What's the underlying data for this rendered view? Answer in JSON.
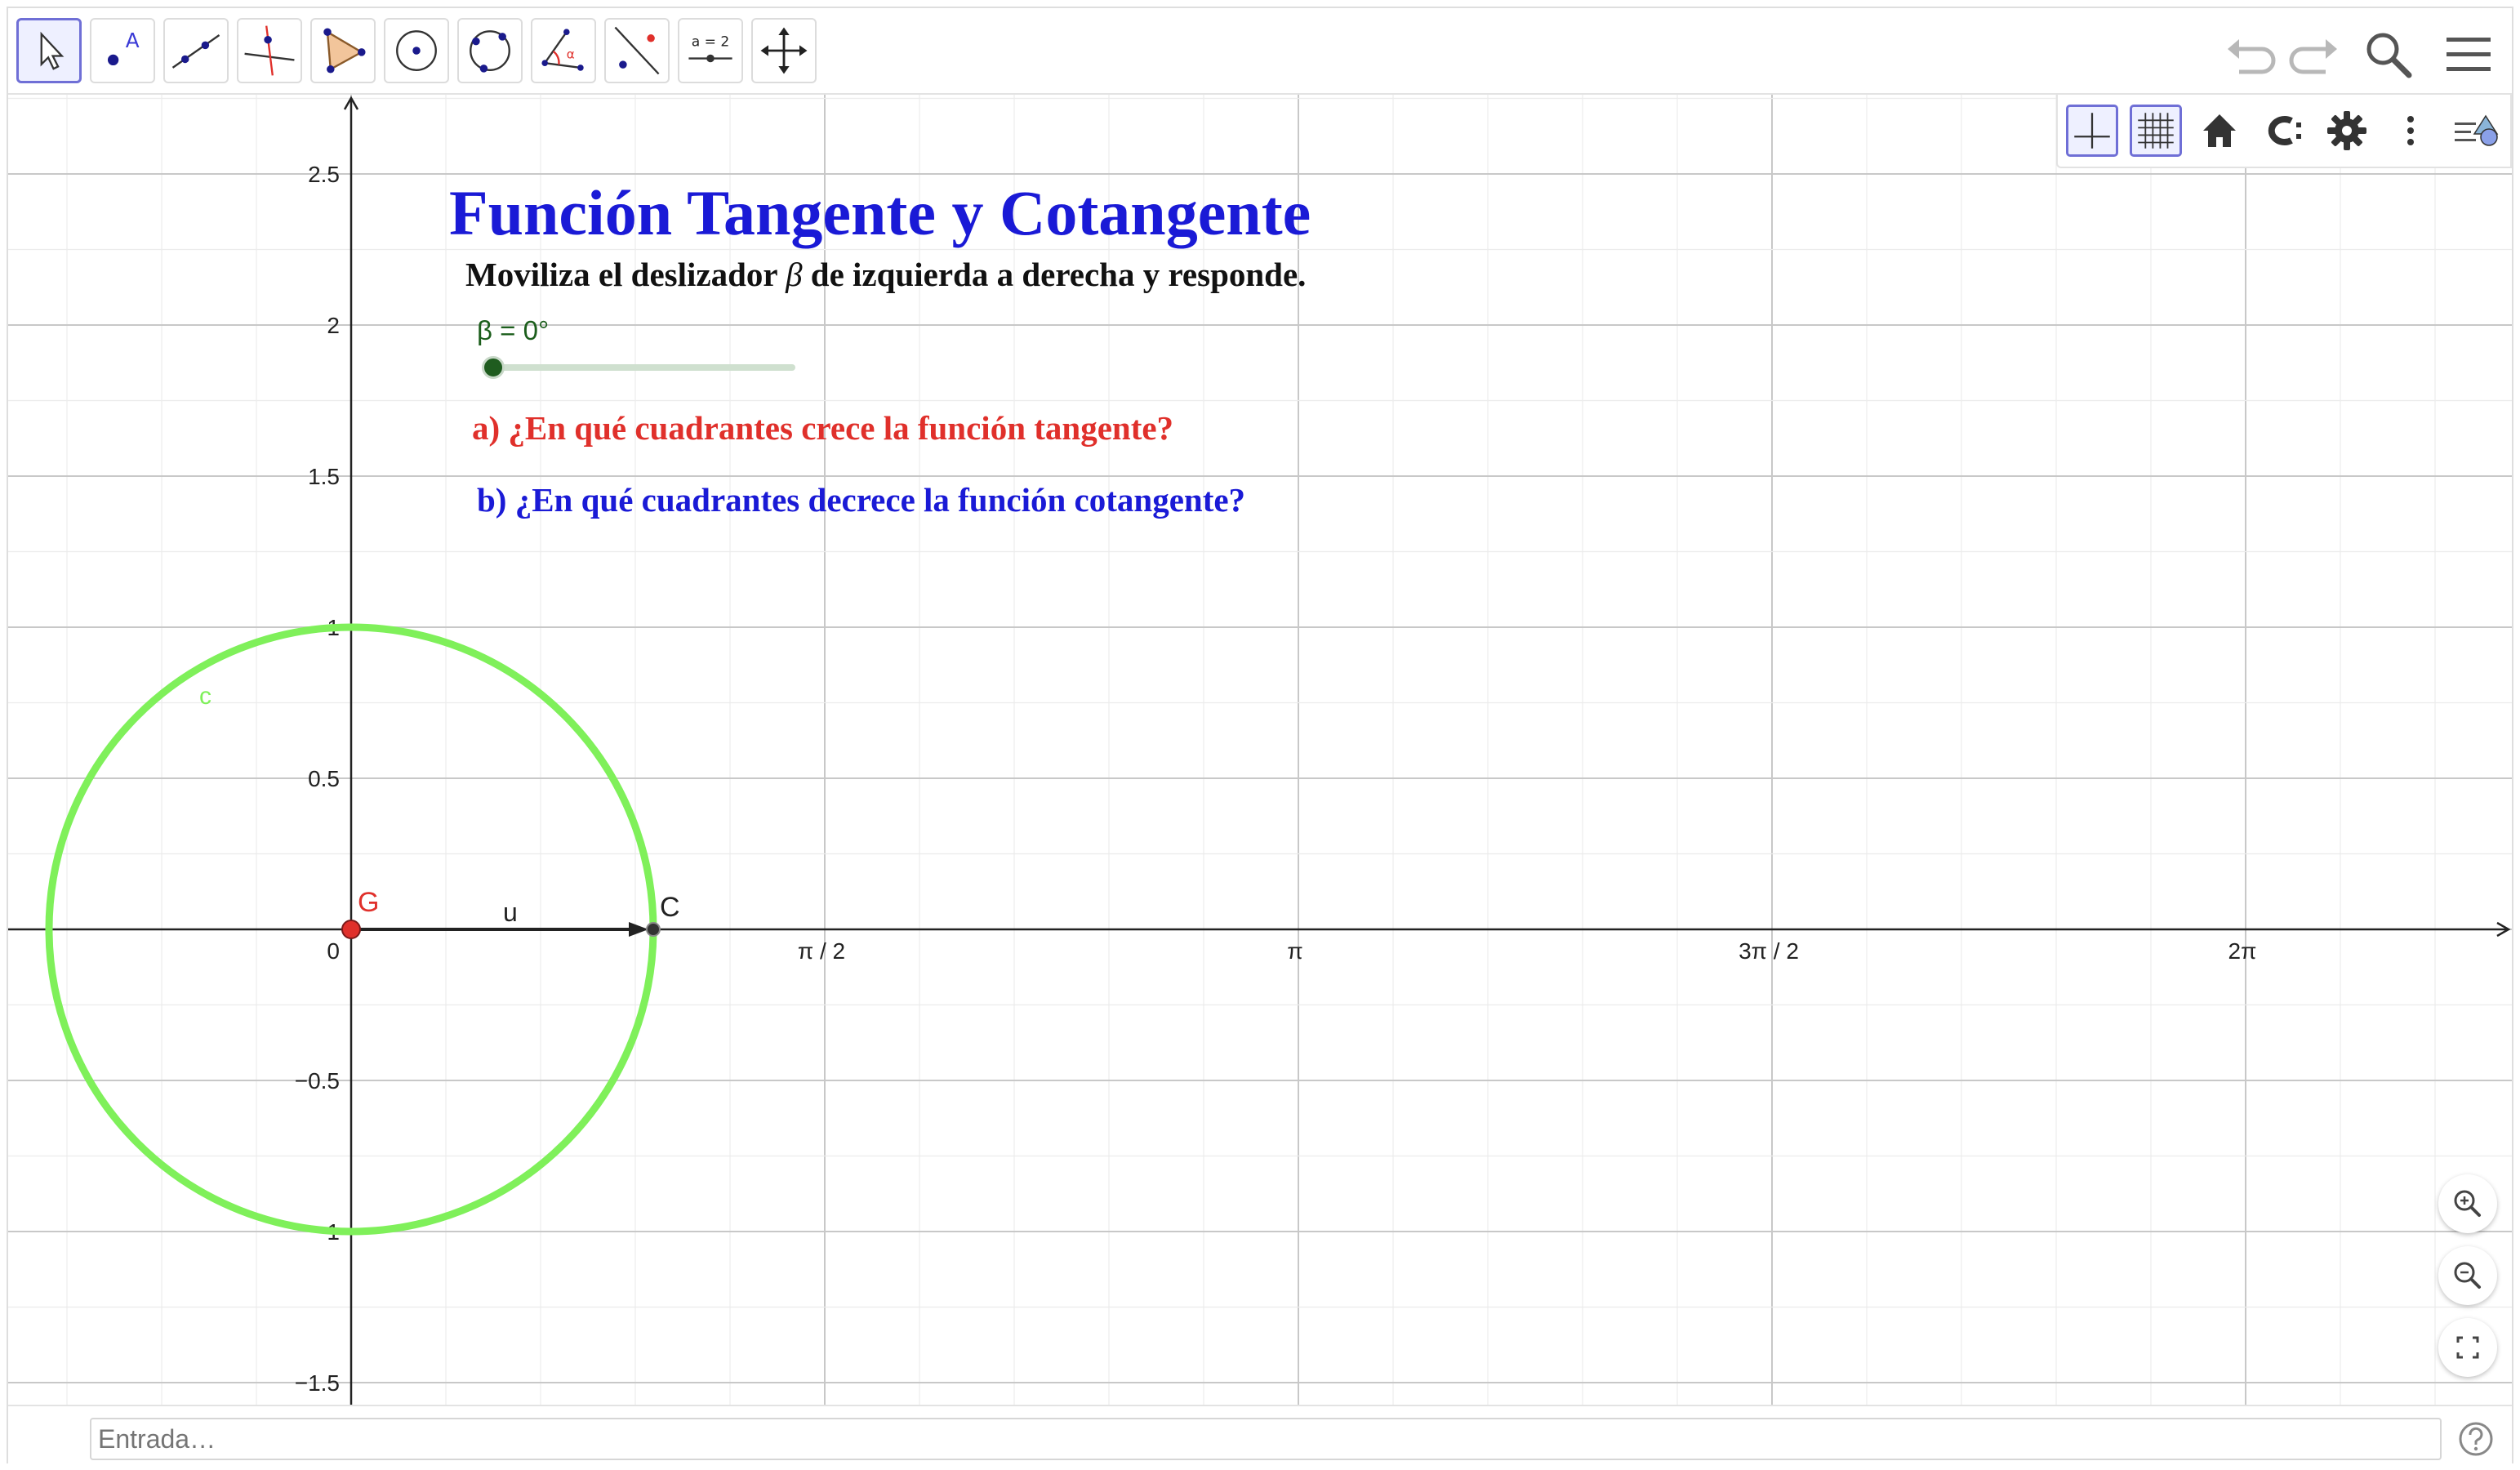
{
  "toolbar": {
    "tools": [
      {
        "name": "move-tool",
        "selected": true
      },
      {
        "name": "point-tool",
        "label": "A"
      },
      {
        "name": "line-tool"
      },
      {
        "name": "perpendicular-line-tool"
      },
      {
        "name": "polygon-tool"
      },
      {
        "name": "circle-center-point-tool"
      },
      {
        "name": "circle-three-points-tool"
      },
      {
        "name": "angle-tool",
        "label": "α"
      },
      {
        "name": "reflect-tool"
      },
      {
        "name": "slider-tool",
        "label": "a = 2"
      },
      {
        "name": "move-graphics-view-tool"
      }
    ],
    "right": [
      "undo-icon",
      "redo-icon",
      "search-icon",
      "menu-icon"
    ]
  },
  "stylebar": [
    "axes-icon",
    "grid-icon",
    "home-icon",
    "copy-style-icon",
    "gear-icon",
    "more-icon",
    "toggle-algebra-icon"
  ],
  "graphics": {
    "title": "Función Tangente y Cotangente",
    "instruction_before": "Moviliza el deslizador ",
    "instruction_symbol": "β",
    "instruction_after": " de izquierda a derecha y responde.",
    "slider": {
      "label": "β = 0°",
      "value_deg": 0
    },
    "question_a": "a) ¿En qué cuadrantes crece la función tangente?",
    "question_b": "b) ¿En qué cuadrantes decrece la función cotangente?",
    "axes": {
      "x_ticks": [
        "π / 2",
        "π",
        "3π / 2",
        "2π"
      ],
      "y_ticks": [
        "2.5",
        "2",
        "1.5",
        "1",
        "0.5",
        "0",
        "−0.5",
        "−1",
        "−1.5"
      ]
    },
    "objects": {
      "circle_label": "c",
      "point_G": "G",
      "point_C": "C",
      "vector_label": "u"
    },
    "colors": {
      "title": "#1a1ad6",
      "question_a": "#e0302b",
      "question_b": "#1a1ad6",
      "circle": "#7ff05a",
      "point_G": "#e0302b",
      "slider": "#1f5c1f"
    }
  },
  "zoom": [
    "zoom-in-icon",
    "zoom-out-icon",
    "fullscreen-icon"
  ],
  "input": {
    "placeholder": "Entrada…"
  }
}
